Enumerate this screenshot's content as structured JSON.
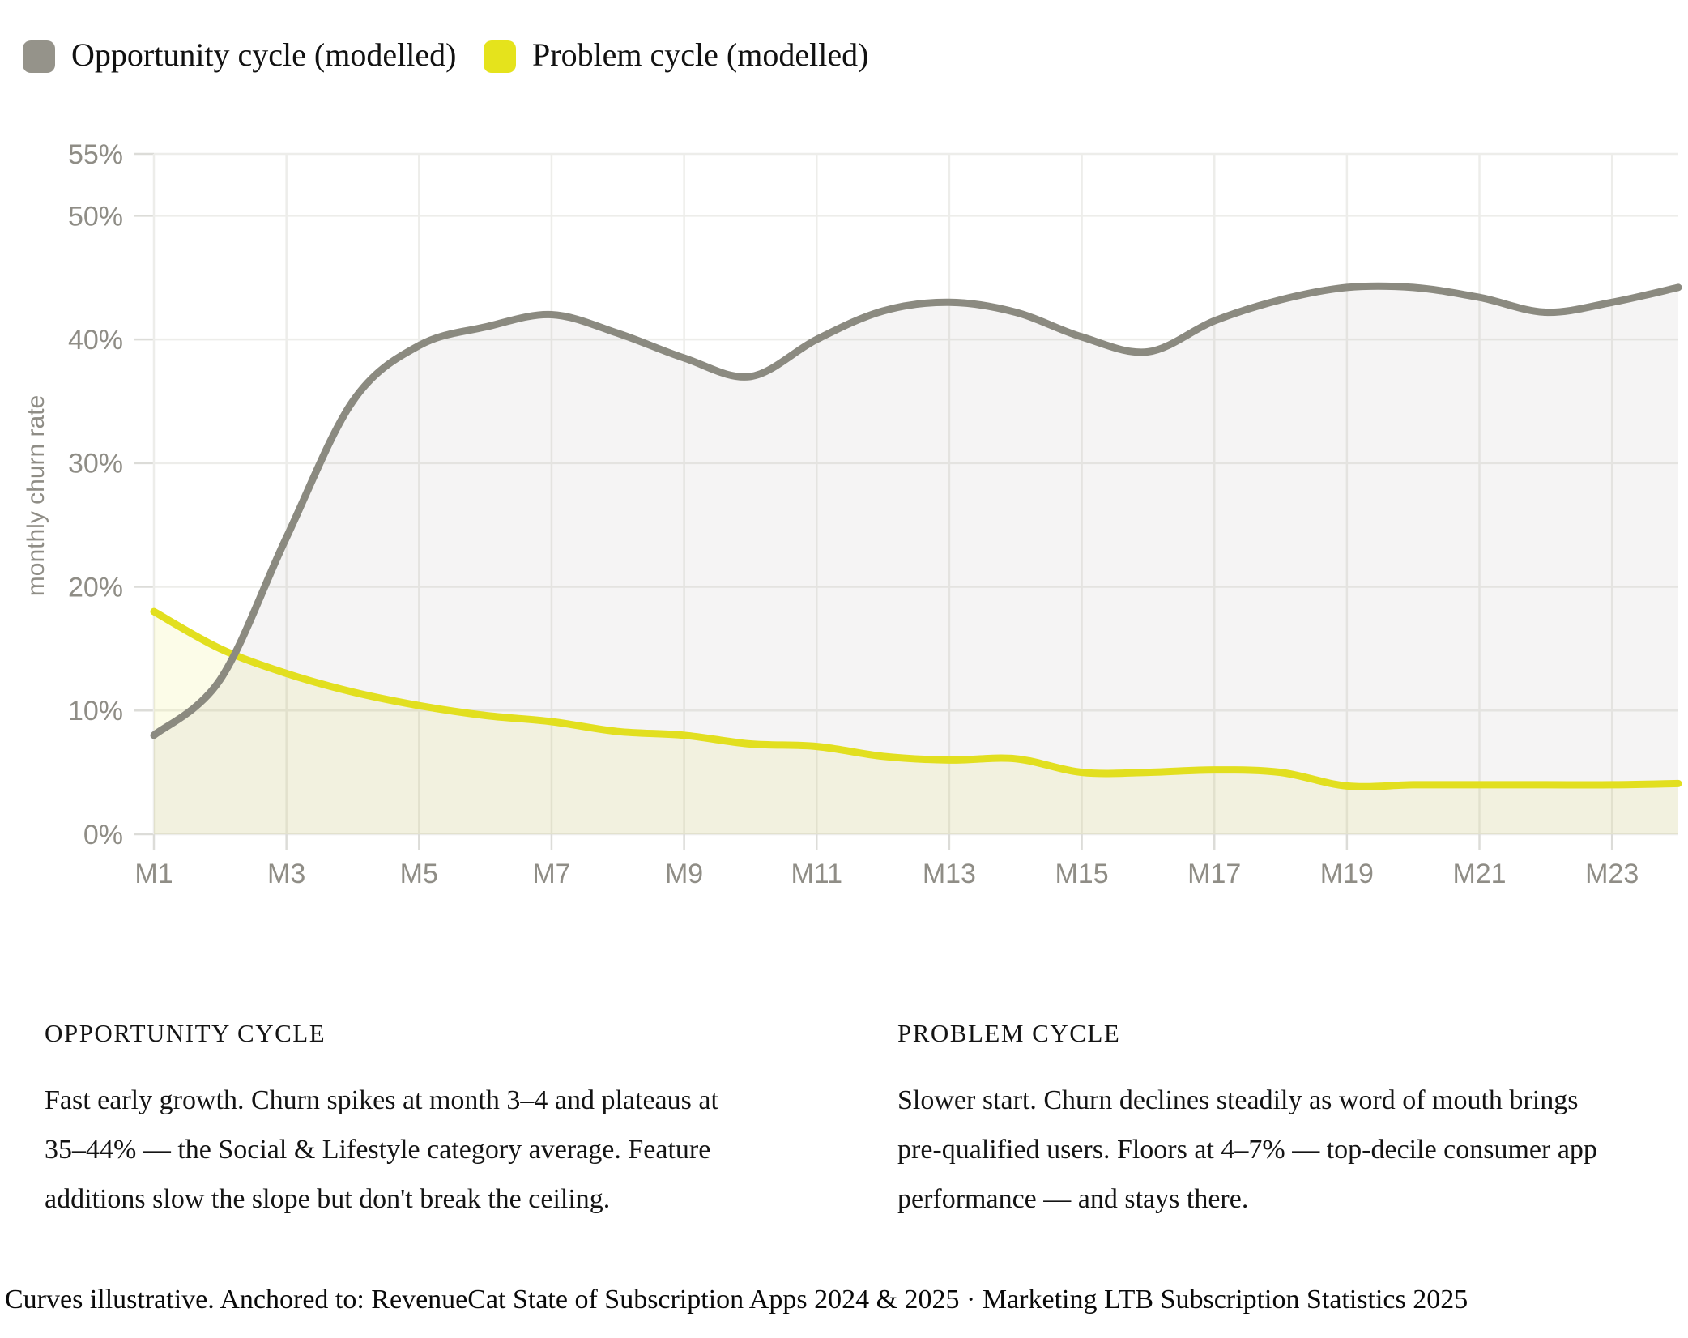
{
  "legend": {
    "items": [
      {
        "label": "Opportunity cycle (modelled)",
        "swatch": "#95938a"
      },
      {
        "label": "Problem cycle (modelled)",
        "swatch": "#e5e31c"
      }
    ]
  },
  "chart_data": {
    "type": "area",
    "title": "",
    "xlabel": "",
    "ylabel": "monthly churn rate",
    "x": [
      "M1",
      "M2",
      "M3",
      "M4",
      "M5",
      "M6",
      "M7",
      "M8",
      "M9",
      "M10",
      "M11",
      "M12",
      "M13",
      "M14",
      "M15",
      "M16",
      "M17",
      "M18",
      "M19",
      "M20",
      "M21",
      "M22",
      "M23",
      "M24"
    ],
    "x_tick_labels": [
      "M1",
      "M3",
      "M5",
      "M7",
      "M9",
      "M11",
      "M13",
      "M15",
      "M17",
      "M19",
      "M21",
      "M23"
    ],
    "y_ticks": [
      {
        "v": 0,
        "label": "0%"
      },
      {
        "v": 10,
        "label": "10%"
      },
      {
        "v": 20,
        "label": "20%"
      },
      {
        "v": 30,
        "label": "30%"
      },
      {
        "v": 40,
        "label": "40%"
      },
      {
        "v": 50,
        "label": "50%"
      },
      {
        "v": 55,
        "label": "55%"
      }
    ],
    "ylim": [
      0,
      55
    ],
    "grid": true,
    "legend_position": "top-left",
    "axis_text_color": "#8f8d86",
    "grid_color": "#ededea",
    "tick_color": "#dcdcd8",
    "series": [
      {
        "name": "Opportunity cycle (modelled)",
        "color": "#8b8a80",
        "fill": "rgba(139,138,128,0.09)",
        "values": [
          8,
          12.5,
          24,
          35,
          39.5,
          41,
          42,
          40.5,
          38.5,
          37,
          40,
          42.3,
          43,
          42.2,
          40.2,
          39,
          41.5,
          43.2,
          44.2,
          44.2,
          43.4,
          42.2,
          43,
          44.2
        ]
      },
      {
        "name": "Problem cycle (modelled)",
        "color": "#e2df1f",
        "fill": "rgba(226,223,31,0.10)",
        "values": [
          18,
          15,
          13,
          11.5,
          10.4,
          9.6,
          9.1,
          8.3,
          8.0,
          7.3,
          7.1,
          6.3,
          6.0,
          6.1,
          5.0,
          5.0,
          5.2,
          5.0,
          3.9,
          4.0,
          4.0,
          4.0,
          4.0,
          4.1
        ]
      }
    ]
  },
  "panels": [
    {
      "heading": "OPPORTUNITY CYCLE",
      "body": "Fast early growth. Churn spikes at month 3–4 and plateaus at\n35–44% — the Social & Lifestyle category average. Feature\nadditions slow the slope but don't break the ceiling."
    },
    {
      "heading": "PROBLEM CYCLE",
      "body": "Slower start. Churn declines steadily as word of mouth brings\npre-qualified users. Floors at 4–7% — top-decile consumer app\nperformance — and stays there."
    }
  ],
  "footer": "Curves illustrative. Anchored to: RevenueCat State of Subscription Apps 2024 & 2025 · Marketing LTB Subscription Statistics 2025"
}
